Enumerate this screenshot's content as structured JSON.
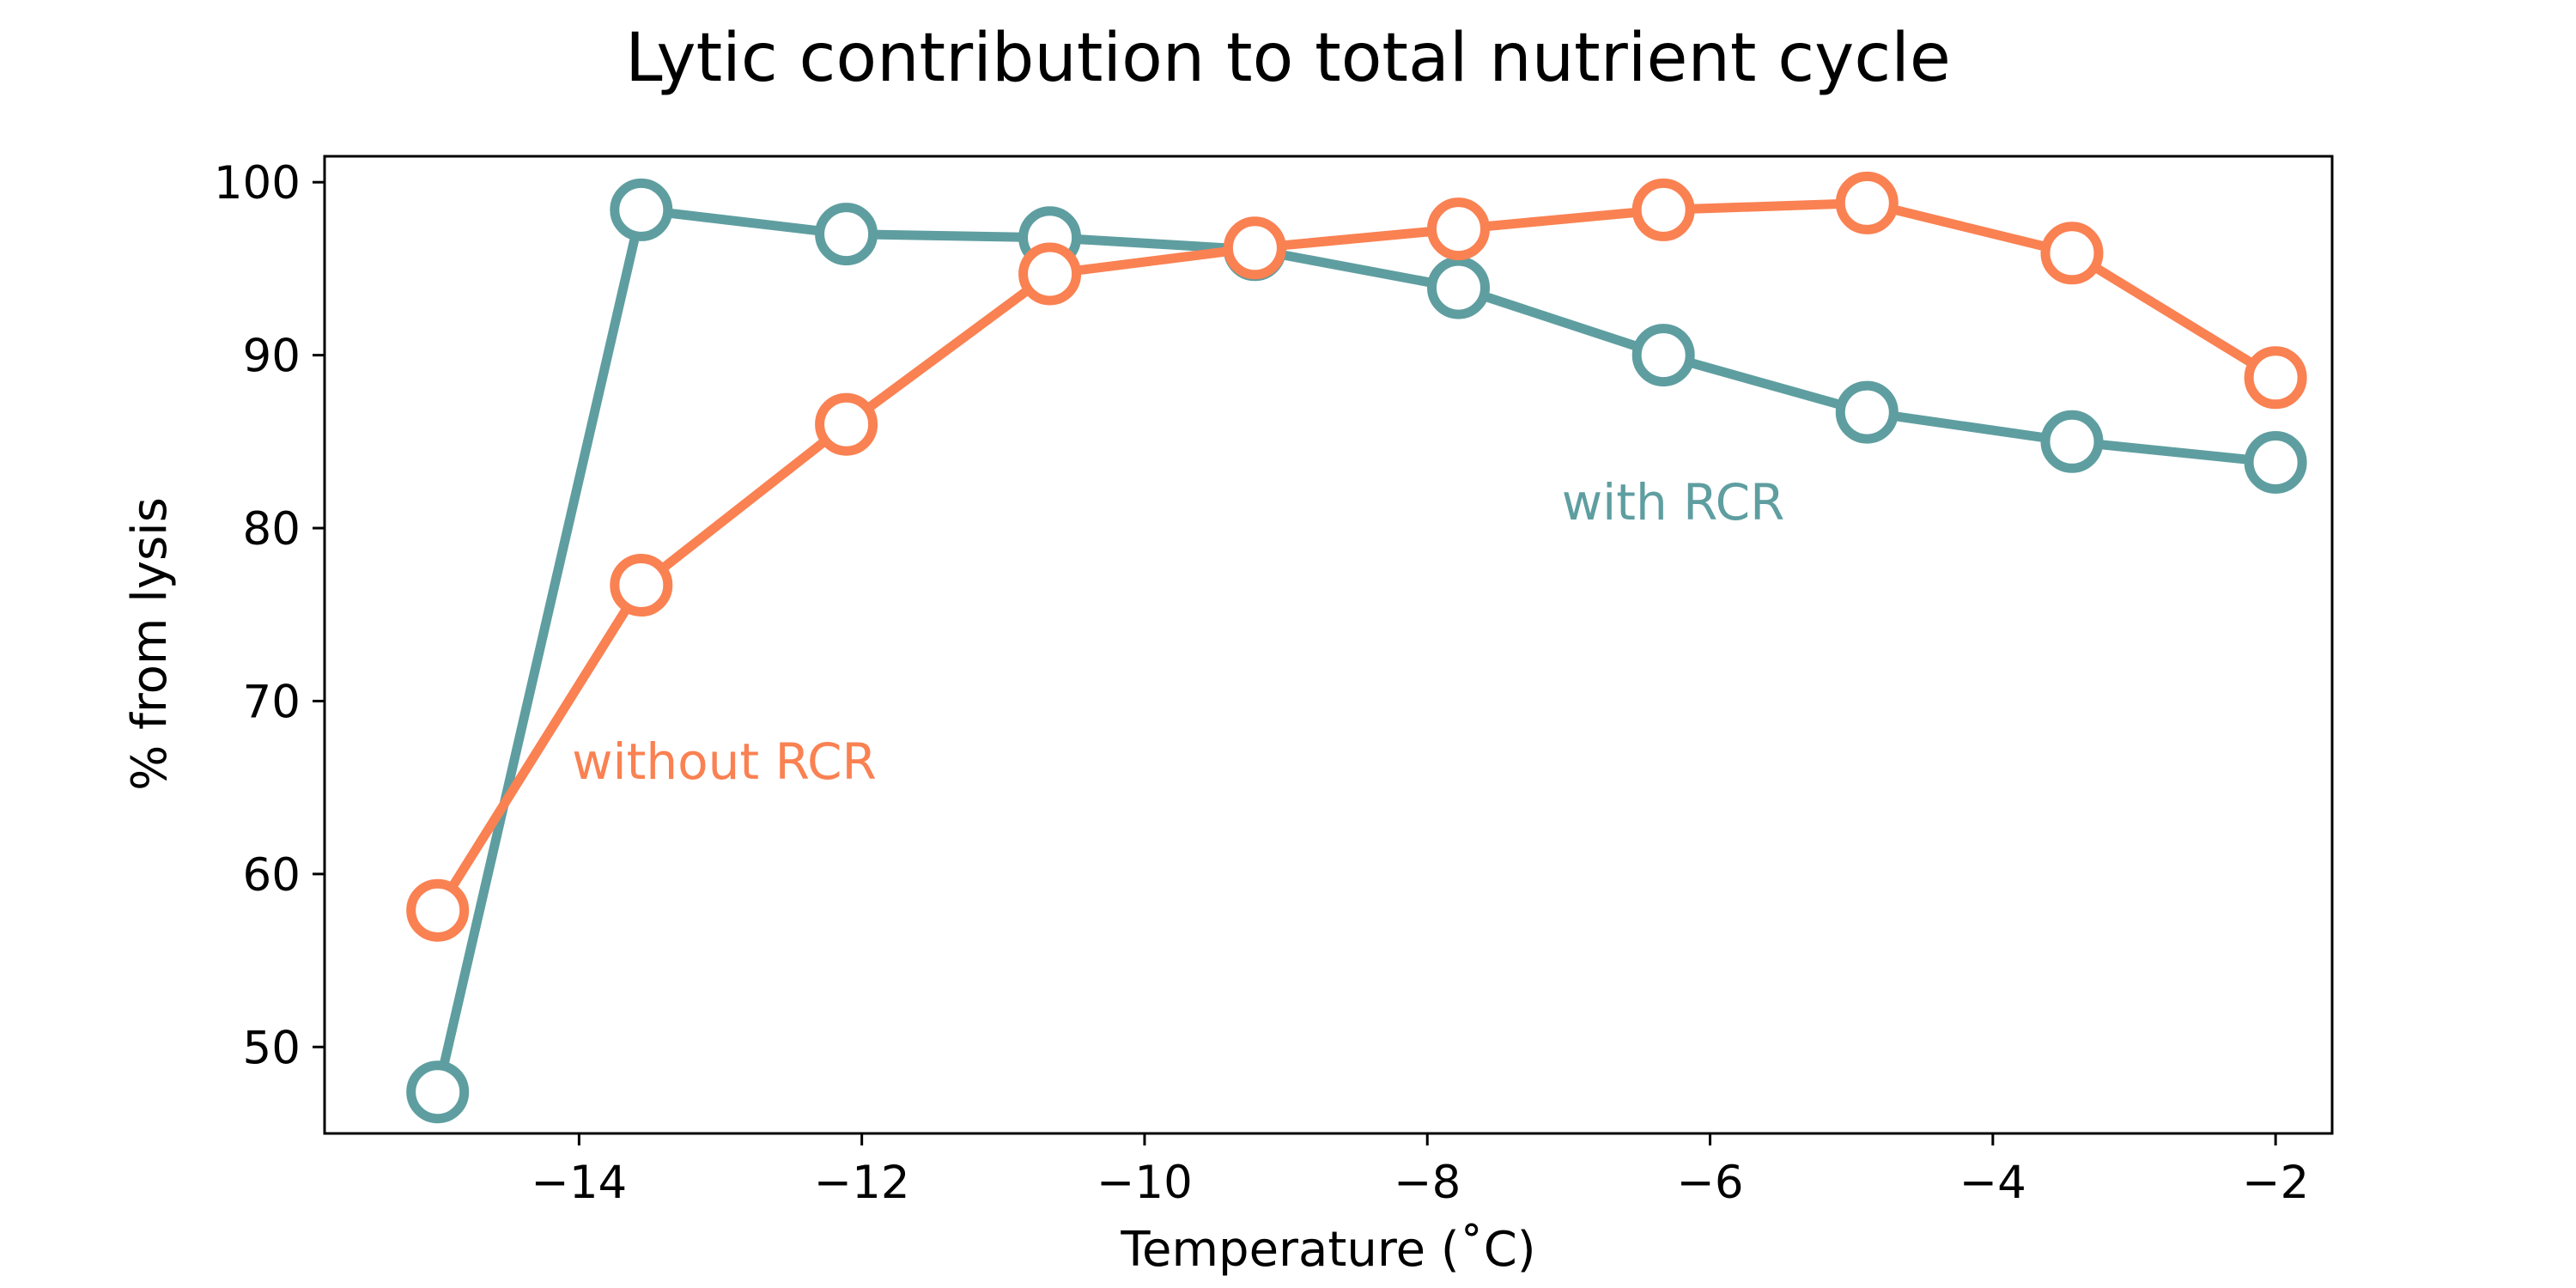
{
  "chart_data": {
    "type": "line",
    "title": "Lytic contribution to total nutrient cycle",
    "xlabel": "Temperature (˚C)",
    "ylabel": "% from lysis",
    "xlim": [
      -15.8,
      -1.6
    ],
    "ylim": [
      45,
      101.5
    ],
    "xticks": [
      -14,
      -12,
      -10,
      -8,
      -6,
      -4,
      -2
    ],
    "xtick_labels": [
      "−14",
      "−12",
      "−10",
      "−8",
      "−6",
      "−4",
      "−2"
    ],
    "yticks": [
      50,
      60,
      70,
      80,
      90,
      100
    ],
    "ytick_labels": [
      "50",
      "60",
      "70",
      "80",
      "90",
      "100"
    ],
    "grid": false,
    "legend": "none",
    "x": [
      -15.0,
      -13.56,
      -12.11,
      -10.67,
      -9.22,
      -7.78,
      -6.33,
      -4.89,
      -3.44,
      -2.0
    ],
    "series": [
      {
        "name": "with RCR",
        "color": "#5f9ea0",
        "values": [
          47.4,
          98.4,
          97.0,
          96.8,
          96.1,
          93.9,
          90.0,
          86.7,
          85.0,
          83.8
        ]
      },
      {
        "name": "without RCR",
        "color": "#fa8152",
        "values": [
          57.9,
          76.7,
          86.0,
          94.7,
          96.2,
          97.3,
          98.4,
          98.8,
          95.9,
          88.7
        ]
      }
    ],
    "annotations": [
      {
        "text": "with RCR",
        "x": -7.05,
        "y": 80.5,
        "color": "#5f9ea0"
      },
      {
        "text": "without RCR",
        "x": -14.05,
        "y": 65.5,
        "color": "#fa8152"
      }
    ]
  }
}
